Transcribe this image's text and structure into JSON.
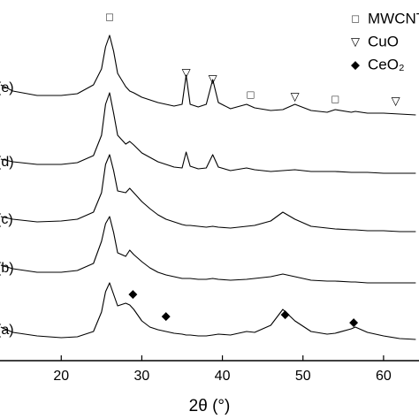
{
  "chart_data": {
    "type": "line",
    "x_label": "2θ (°)",
    "x": [
      12.5,
      14,
      17,
      20,
      22,
      24,
      25,
      25.5,
      26,
      26.5,
      27,
      28,
      28.5,
      29,
      30,
      31,
      32,
      33,
      34,
      35,
      35.5,
      36,
      37,
      38,
      38.8,
      39.5,
      41,
      43,
      44,
      46,
      47.5,
      49,
      51,
      53,
      54,
      56,
      56.5,
      58,
      60,
      62,
      64
    ],
    "series": [
      {
        "name": "(e)",
        "color": "#000000",
        "values": [
          312,
          305,
          300,
          300,
          302,
          312,
          330,
          355,
          368,
          350,
          325,
          310,
          305,
          303,
          298,
          295,
          292,
          290,
          288,
          290,
          323,
          290,
          287,
          290,
          318,
          292,
          285,
          290,
          286,
          283,
          284,
          290,
          283,
          281,
          284,
          281,
          282,
          280,
          280,
          279,
          278
        ]
      },
      {
        "name": "(d)",
        "color": "#000000",
        "values": [
          228,
          225,
          222,
          222,
          224,
          232,
          255,
          290,
          303,
          280,
          255,
          245,
          248,
          244,
          235,
          230,
          225,
          222,
          219,
          218,
          236,
          220,
          217,
          218,
          233,
          219,
          215,
          218,
          216,
          214,
          215,
          216,
          214,
          214,
          214,
          213,
          213,
          213,
          212,
          212,
          212
        ]
      },
      {
        "name": "(c)",
        "color": "#000000",
        "values": [
          163,
          160,
          157,
          158,
          160,
          168,
          190,
          222,
          233,
          215,
          192,
          190,
          195,
          190,
          180,
          172,
          165,
          160,
          157,
          154,
          153,
          153,
          152,
          151,
          152,
          151,
          150,
          152,
          153,
          158,
          168,
          160,
          152,
          150,
          149,
          148,
          148,
          147,
          147,
          146,
          146
        ]
      },
      {
        "name": "(b)",
        "color": "#000000",
        "values": [
          108,
          104,
          100,
          100,
          102,
          110,
          135,
          155,
          163,
          145,
          122,
          118,
          125,
          120,
          112,
          105,
          100,
          97,
          95,
          93,
          93,
          93,
          92,
          92,
          93,
          92,
          91,
          92,
          93,
          95,
          98,
          95,
          91,
          90,
          90,
          89,
          89,
          88,
          88,
          88,
          88
        ]
      },
      {
        "name": "(a)",
        "color": "#000000",
        "values": [
          38,
          32,
          28,
          26,
          27,
          33,
          55,
          78,
          88,
          75,
          62,
          65,
          63,
          58,
          45,
          38,
          35,
          33,
          31,
          30,
          29,
          29,
          28,
          28,
          29,
          30,
          29,
          33,
          32,
          40,
          58,
          45,
          33,
          30,
          31,
          36,
          38,
          32,
          28,
          25,
          24
        ]
      }
    ],
    "xlim": [
      12.4,
      64.4
    ],
    "xticks": [
      20,
      30,
      40,
      50,
      60
    ],
    "ylim": [
      0,
      408
    ],
    "annotations": [
      {
        "label": "□",
        "x": 26,
        "y": 388
      },
      {
        "label": "▽",
        "x": 35.5,
        "y": 325
      },
      {
        "label": "▽",
        "x": 38.8,
        "y": 318
      },
      {
        "label": "□",
        "x": 43.5,
        "y": 300
      },
      {
        "label": "▽",
        "x": 49,
        "y": 298
      },
      {
        "label": "□",
        "x": 54,
        "y": 295
      },
      {
        "label": "▽",
        "x": 61.5,
        "y": 293
      },
      {
        "label": "◆",
        "x": 28.9,
        "y": 75
      },
      {
        "label": "◆",
        "x": 33,
        "y": 50
      },
      {
        "label": "◆",
        "x": 47.8,
        "y": 52
      },
      {
        "label": "◆",
        "x": 56.3,
        "y": 43
      }
    ],
    "legend": [
      {
        "marker": "□",
        "label": "MWCNTs"
      },
      {
        "marker": "▽",
        "label": "CuO"
      },
      {
        "marker": "◆",
        "label": "CeO₂"
      }
    ]
  }
}
